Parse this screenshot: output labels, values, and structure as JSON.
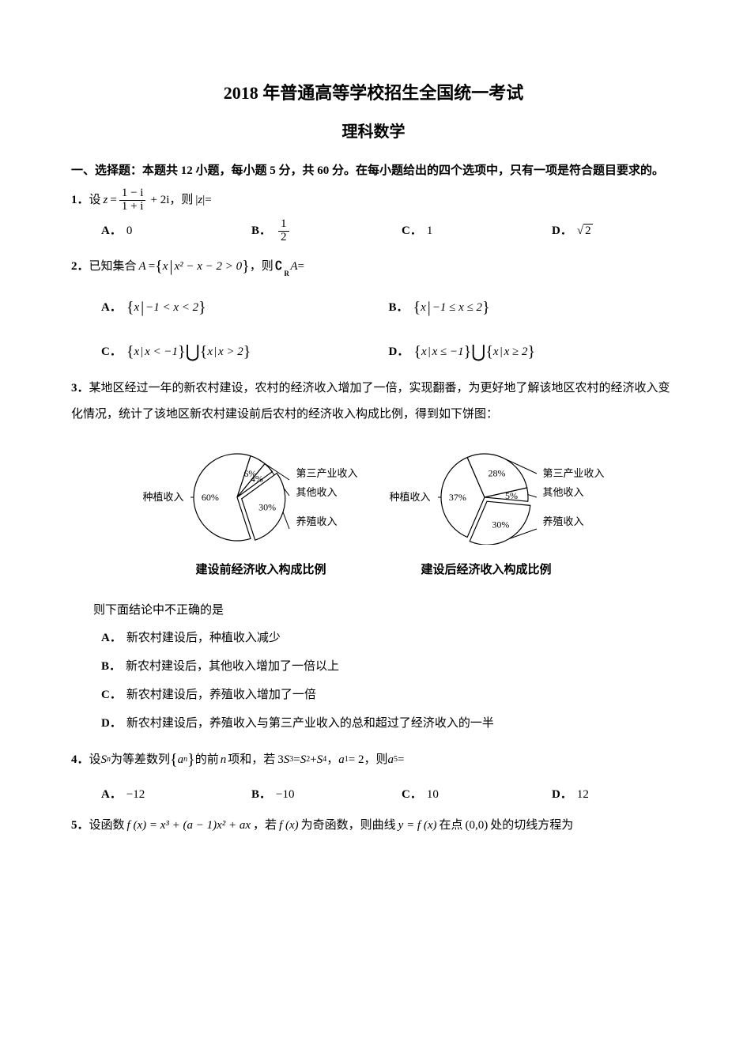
{
  "title": "2018 年普通高等学校招生全国统一考试",
  "subtitle": "理科数学",
  "section1": "一、选择题：本题共 12 小题，每小题 5 分，共 60 分。在每小题给出的四个选项中，只有一项是符合题目要求的。",
  "q1": {
    "num": "1．",
    "stem_a": "设",
    "stem_b": "，则",
    "stem_c": "=",
    "z": "z",
    "eq": "=",
    "frac_num": "1 − i",
    "frac_den": "1 + i",
    "plus2i": "+ 2i",
    "abs_l": "|",
    "abs_z": "z",
    "abs_r": "|",
    "opts": {
      "A": "0",
      "B_num": "1",
      "B_den": "2",
      "C": "1",
      "D_rad": "2"
    }
  },
  "q2": {
    "num": "2．",
    "stem_a": "已知集合",
    "A": "A",
    "eq1": " = ",
    "set_open": "{",
    "set_x": "x",
    "set_bar": "|",
    "cond": "x² − x − 2 > 0",
    "set_close": "}",
    "stem_b": "，则",
    "comp": "∁",
    "compR": "R",
    "A2": "A",
    "eq2": " =",
    "optA_l": "{",
    "optA_x": "x",
    "optA_bar": "|",
    "optA_c": "−1 < x < 2",
    "optA_r": "}",
    "optB_l": "{",
    "optB_x": "x",
    "optB_bar": "|",
    "optB_c": "−1 ≤ x ≤ 2",
    "optB_r": "}",
    "optC1_l": "{",
    "optC1_x": "x",
    "optC1_bar": "|",
    "optC1_c": "x < −1",
    "optC1_r": "}",
    "optC_u": "⋃",
    "optC2_l": "{",
    "optC2_x": "x",
    "optC2_bar": "|",
    "optC2_c": "x > 2",
    "optC2_r": "}",
    "optD1_l": "{",
    "optD1_x": "x",
    "optD1_bar": "|",
    "optD1_c": "x ≤ −1",
    "optD1_r": "}",
    "optD_u": "⋃",
    "optD2_l": "{",
    "optD2_x": "x",
    "optD2_bar": "|",
    "optD2_c": "x ≥ 2",
    "optD2_r": "}"
  },
  "q3": {
    "num": "3．",
    "stem": "某地区经过一年的新农村建设，农村的经济收入增加了一倍，实现翻番，为更好地了解该地区农村的经济收入变化情况，统计了该地区新农村建设前后农村的经济收入构成比例，得到如下饼图：",
    "chart1": {
      "left_label": "种植收入",
      "right_labels": [
        "第三产业收入",
        "其他收入",
        "养殖收入"
      ],
      "slices": [
        {
          "label": "60%",
          "value": 60,
          "fill": "#ffffff"
        },
        {
          "label": "6%",
          "value": 6,
          "fill": "#ffffff"
        },
        {
          "label": "4%",
          "value": 4,
          "fill": "#ffffff"
        },
        {
          "label": "30%",
          "value": 30,
          "fill": "#ffffff"
        }
      ],
      "stroke": "#000000",
      "radius": 55
    },
    "chart2": {
      "left_label": "种植收入",
      "right_labels": [
        "第三产业收入",
        "其他收入",
        "养殖收入"
      ],
      "slices": [
        {
          "label": "37%",
          "value": 37,
          "fill": "#ffffff"
        },
        {
          "label": "28%",
          "value": 28,
          "fill": "#ffffff"
        },
        {
          "label": "5%",
          "value": 5,
          "fill": "#ffffff"
        },
        {
          "label": "30%",
          "value": 30,
          "fill": "#ffffff"
        }
      ],
      "stroke": "#000000",
      "radius": 55
    },
    "caption1": "建设前经济收入构成比例",
    "caption2": "建设后经济收入构成比例",
    "sub": "则下面结论中不正确的是",
    "opts": {
      "A": "新农村建设后，种植收入减少",
      "B": "新农村建设后，其他收入增加了一倍以上",
      "C": "新农村建设后，养殖收入增加了一倍",
      "D": "新农村建设后，养殖收入与第三产业收入的总和超过了经济收入的一半"
    }
  },
  "q4": {
    "num": "4．",
    "stem_a": "设",
    "S": "S",
    "Sn": "n",
    "stem_b": "为等差数列",
    "set_l": "{",
    "a": "a",
    "an": "n",
    "set_r": "}",
    "stem_c": "的前",
    "n": "n",
    "stem_d": "项和，若",
    "eq1_a": "3",
    "eq1_S": "S",
    "eq1_3": "3",
    "eq1_eq": " = ",
    "eq1_S2": "S",
    "eq1_2": "2",
    "eq1_p": " + ",
    "eq1_S4": "S",
    "eq1_4": "4",
    "comma": "，",
    "a1": "a",
    "a1_1": "1",
    "a1_eq": " = 2",
    "comma2": "，则",
    "a5": "a",
    "a5_5": "5",
    "a5_eq": " =",
    "opts": {
      "A": "−12",
      "B": "−10",
      "C": "10",
      "D": "12"
    }
  },
  "q5": {
    "num": "5．",
    "stem_a": "设函数",
    "fx": "f (x) = x³ + (a − 1)x² + ax",
    "stem_b": "，若",
    "fx2": "f (x)",
    "stem_c": "为奇函数，则曲线",
    "yfx": "y = f (x)",
    "stem_d": "在点",
    "pt": "(0,0)",
    "stem_e": "处的切线方程为"
  },
  "labels": {
    "A": "A．",
    "B": "B．",
    "C": "C．",
    "D": "D．"
  }
}
